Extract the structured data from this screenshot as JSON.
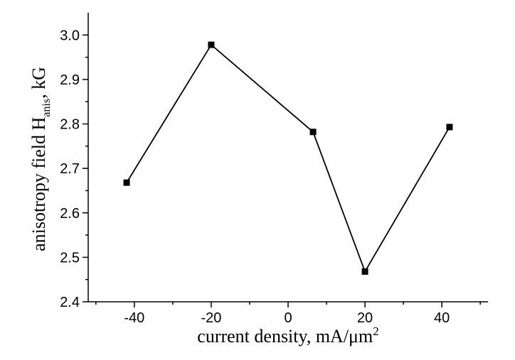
{
  "chart_data": {
    "type": "line",
    "x": [
      -42,
      -20,
      6.5,
      20,
      42
    ],
    "y": [
      2.668,
      2.978,
      2.782,
      2.468,
      2.793
    ],
    "xlim": [
      -52,
      52
    ],
    "ylim": [
      2.4,
      3.05
    ],
    "xticks": [
      -40,
      -20,
      0,
      20,
      40
    ],
    "yticks": [
      2.4,
      2.5,
      2.6,
      2.7,
      2.8,
      2.9,
      3.0
    ],
    "xtick_labels": [
      "-40",
      "-20",
      "0",
      "20",
      "40"
    ],
    "ytick_labels": [
      "2.4",
      "2.5",
      "2.6",
      "2.7",
      "2.8",
      "2.9",
      "3.0"
    ],
    "xlabel": "current density, mA/μm",
    "xlabel_sup": "2",
    "ylabel": "anisotropy field H",
    "ylabel_sub": "anis",
    "ylabel_suffix": ", kG",
    "marker": "square",
    "grid": false,
    "color": "#000000"
  }
}
